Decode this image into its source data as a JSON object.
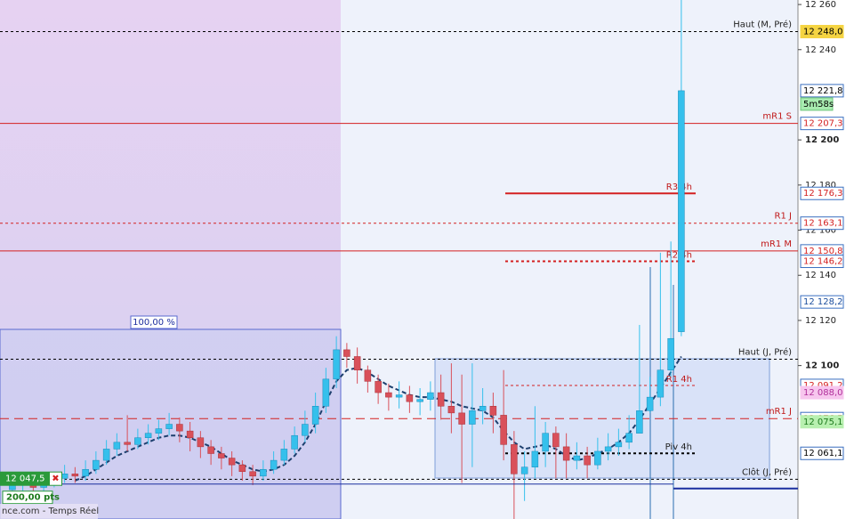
{
  "chart_data": {
    "type": "candlestick",
    "ylim": [
      12032,
      12262
    ],
    "yticks": [
      {
        "value": 12260,
        "label": "12 260"
      },
      {
        "value": 12240,
        "label": "12 240"
      },
      {
        "value": 12200,
        "label": "12 200"
      },
      {
        "value": 12180,
        "label": "12 180"
      },
      {
        "value": 12160,
        "label": "12 160"
      },
      {
        "value": 12140,
        "label": "12 140"
      },
      {
        "value": 12120,
        "label": "12 120"
      },
      {
        "value": 12100,
        "label": "12 100"
      }
    ],
    "up_color": "#35c0ec",
    "down_color": "#d9505a",
    "ma_color": "#1d3f6e",
    "open": [
      12045,
      12047,
      12048,
      12046,
      12049,
      12050,
      12052,
      12051,
      12054,
      12058,
      12063,
      12066,
      12065,
      12068,
      12070,
      12072,
      12074,
      12071,
      12068,
      12064,
      12061,
      12059,
      12056,
      12053,
      12051,
      12054,
      12058,
      12063,
      12069,
      12074,
      12082,
      12094,
      12107,
      12104,
      12098,
      12093,
      12088,
      12086,
      12087,
      12084,
      12085,
      12088,
      12082,
      12079,
      12074,
      12080,
      12082,
      12078,
      12065,
      12052,
      12055,
      12062,
      12070,
      12064,
      12058,
      12060,
      12056,
      12062,
      12064,
      12066,
      12070,
      12080,
      12086,
      12098,
      12115
    ],
    "high": [
      12050,
      12051,
      12051,
      12052,
      12053,
      12056,
      12055,
      12058,
      12062,
      12067,
      12070,
      12078,
      12072,
      12074,
      12076,
      12079,
      12077,
      12075,
      12071,
      12067,
      12064,
      12062,
      12058,
      12056,
      12058,
      12062,
      12067,
      12073,
      12080,
      12088,
      12099,
      12113,
      12110,
      12108,
      12100,
      12096,
      12092,
      12093,
      12091,
      12090,
      12093,
      12096,
      12101,
      12096,
      12101,
      12090,
      12088,
      12098,
      12071,
      12062,
      12082,
      12075,
      12073,
      12070,
      12066,
      12064,
      12068,
      12070,
      12072,
      12078,
      12118,
      12095,
      12150,
      12155,
      12262
    ],
    "low": [
      12042,
      12044,
      12043,
      12044,
      12046,
      12048,
      12048,
      12049,
      12052,
      12056,
      12060,
      12062,
      12063,
      12065,
      12067,
      12069,
      12066,
      12062,
      12059,
      12056,
      12054,
      12051,
      12049,
      12047,
      12049,
      12052,
      12056,
      12061,
      12066,
      12070,
      12079,
      12090,
      12099,
      12092,
      12088,
      12083,
      12080,
      12081,
      12079,
      12078,
      12080,
      12076,
      12070,
      12048,
      12055,
      12074,
      12070,
      12058,
      12032,
      12040,
      12050,
      12055,
      12050,
      12050,
      12054,
      12050,
      12054,
      12058,
      12060,
      12063,
      12072,
      12079,
      12082,
      12095,
      12113
    ],
    "close": [
      12047,
      12048,
      12046,
      12049,
      12050,
      12052,
      12051,
      12054,
      12058,
      12063,
      12066,
      12065,
      12068,
      12070,
      12072,
      12074,
      12071,
      12068,
      12064,
      12061,
      12059,
      12056,
      12053,
      12051,
      12054,
      12058,
      12063,
      12069,
      12074,
      12082,
      12094,
      12107,
      12104,
      12098,
      12093,
      12088,
      12086,
      12087,
      12084,
      12085,
      12088,
      12082,
      12079,
      12074,
      12080,
      12082,
      12078,
      12065,
      12052,
      12055,
      12062,
      12070,
      12064,
      12058,
      12060,
      12056,
      12062,
      12064,
      12066,
      12070,
      12080,
      12086,
      12098,
      12112,
      12221.8
    ],
    "ma": [
      null,
      null,
      null,
      null,
      null,
      null,
      12049,
      12051,
      12054,
      12057,
      12060,
      12062,
      12064,
      12066,
      12068,
      12069,
      12069,
      12068,
      12066,
      12064,
      12061,
      12058,
      12056,
      12054,
      12053,
      12054,
      12056,
      12060,
      12066,
      12074,
      12084,
      12093,
      12098,
      12099,
      12097,
      12094,
      12091,
      12089,
      12087,
      12086,
      12086,
      12085,
      12084,
      12082,
      12081,
      12080,
      12077,
      12071,
      12066,
      12063,
      12064,
      12065,
      12063,
      12060,
      12058,
      12059,
      12061,
      12063,
      12066,
      12070,
      12076,
      12083,
      12090,
      12097,
      12104
    ],
    "levels": [
      {
        "name": "Haut (M, Pré)",
        "value": 12248,
        "color": "#000000",
        "dash": "dashed",
        "width": 1
      },
      {
        "name": "mR1 S",
        "value": 12207.3,
        "color": "#d42020",
        "dash": "solid",
        "width": 1
      },
      {
        "name": "R3 4h",
        "value": 12176.3,
        "color": "#d42020",
        "dash": "solid",
        "width": 2
      },
      {
        "name": "R1 J",
        "value": 12163.1,
        "color": "#d42020",
        "dash": "dashed",
        "width": 1
      },
      {
        "name": "mR1 M",
        "value": 12150.8,
        "color": "#d42020",
        "dash": "solid",
        "width": 1
      },
      {
        "name": "R2 4h",
        "value": 12146.2,
        "color": "#d42020",
        "dash": "dashed",
        "width": 2
      },
      {
        "name": "Haut (J, Pré)",
        "value": 12102.8,
        "color": "#000000",
        "dash": "dashed",
        "width": 1
      },
      {
        "name": "R1 4h",
        "value": 12091.2,
        "color": "#d42020",
        "dash": "dashed",
        "width": 1
      },
      {
        "name": "mR1 J",
        "value": 12076.5,
        "color": "#d42020",
        "dash": "longdash",
        "width": 1
      },
      {
        "name": "Piv 4h",
        "value": 12061.1,
        "color": "#000000",
        "dash": "dashed",
        "width": 2
      },
      {
        "name": "Clôt (J, Pré)",
        "value": 12049.6,
        "color": "#000000",
        "dash": "dashed",
        "width": 1
      }
    ],
    "price_tags": [
      {
        "value": 12248,
        "label": "12 248,0",
        "bg": "#f5d442",
        "fg": "#000000"
      },
      {
        "value": 12221.8,
        "label": "12 221,8",
        "bg": "#ffffff",
        "fg": "#000000"
      },
      {
        "value": 12207.3,
        "label": "12 207,3",
        "bg": "#ffffff",
        "fg": "#d42020"
      },
      {
        "value": 12176.3,
        "label": "12 176,3",
        "bg": "#ffffff",
        "fg": "#d42020"
      },
      {
        "value": 12163.1,
        "label": "12 163,1",
        "bg": "#ffffff",
        "fg": "#d42020"
      },
      {
        "value": 12150.8,
        "label": "12 150,8",
        "bg": "#ffffff",
        "fg": "#d42020"
      },
      {
        "value": 12146.2,
        "label": "12 146,2",
        "bg": "#ffffff",
        "fg": "#d42020"
      },
      {
        "value": 12128.2,
        "label": "12 128,2",
        "bg": "#ffffff",
        "fg": "#1d4f9e"
      },
      {
        "value": 12091.2,
        "label": "12 091,2",
        "bg": "#ffffff",
        "fg": "#d42020"
      },
      {
        "value": 12088.0,
        "label": "12 088,0",
        "bg": "#f7c6ee",
        "fg": "#b0309a"
      },
      {
        "value": 12076.5,
        "label": "12 076,5",
        "bg": "#ffffff",
        "fg": "#d42020"
      },
      {
        "value": 12075.1,
        "label": "12 075,1",
        "bg": "#b8f0b0",
        "fg": "#1d7a1d"
      },
      {
        "value": 12061.1,
        "label": "12 061,1",
        "bg": "#ffffff",
        "fg": "#000000"
      }
    ],
    "countdown": "5m58s",
    "position": {
      "value": 12047.5,
      "label": "12 047,5",
      "pts": "200,00 pts"
    },
    "box_label": "100,00 %",
    "source": "nce.com - Temps Réel"
  }
}
